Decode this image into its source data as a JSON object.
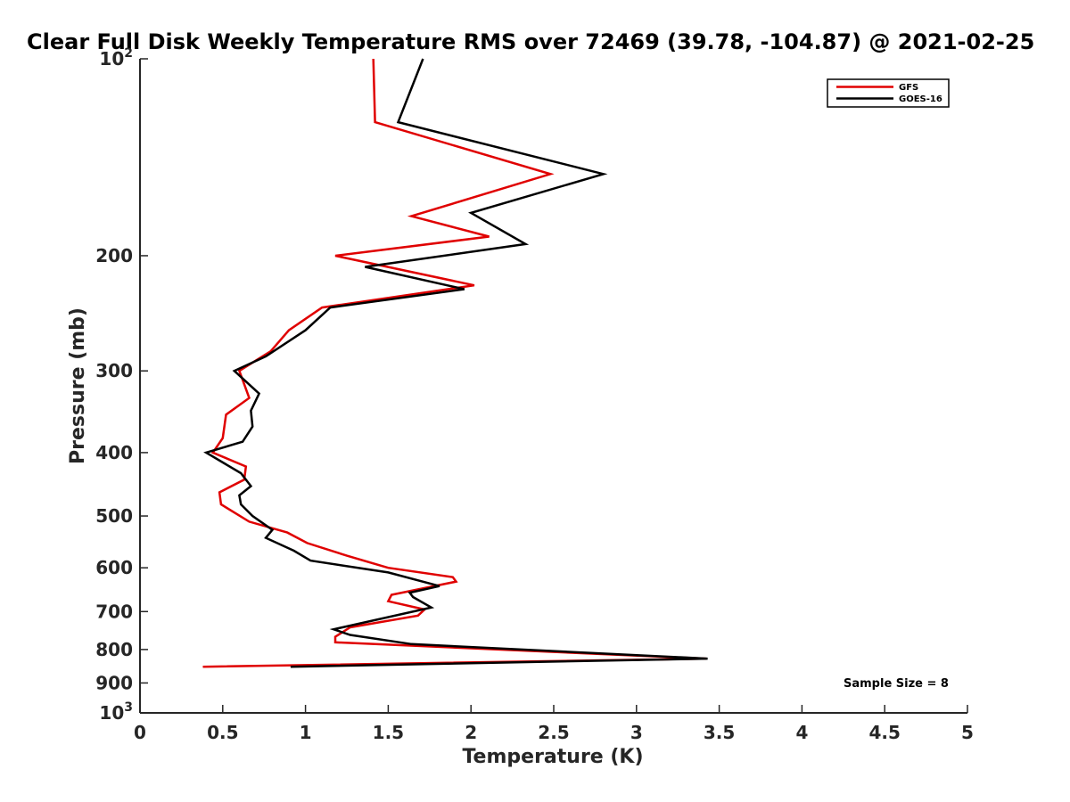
{
  "chart_data": {
    "type": "line",
    "title": "Clear Full Disk Weekly Temperature RMS over 72469 (39.78, -104.87) @ 2021-02-25",
    "xlabel": "Temperature (K)",
    "ylabel": "Pressure (mb)",
    "xlim": [
      0,
      5
    ],
    "ylim": [
      100,
      1000
    ],
    "y_scale": "log",
    "y_reversed": true,
    "x_ticks": [
      "0",
      "0.5",
      "1",
      "1.5",
      "2",
      "2.5",
      "3",
      "3.5",
      "4",
      "4.5",
      "5"
    ],
    "y_ticks": [
      {
        "value": 100,
        "base": "10",
        "exp": "2"
      },
      {
        "value": 200,
        "label": "200"
      },
      {
        "value": 300,
        "label": "300"
      },
      {
        "value": 400,
        "label": "400"
      },
      {
        "value": 500,
        "label": "500"
      },
      {
        "value": 600,
        "label": "600"
      },
      {
        "value": 700,
        "label": "700"
      },
      {
        "value": 800,
        "label": "800"
      },
      {
        "value": 900,
        "label": "900"
      },
      {
        "value": 1000,
        "base": "10",
        "exp": "3"
      }
    ],
    "grid": false,
    "legend_position": "top-right",
    "annotation": "Sample Size = 8",
    "series": [
      {
        "name": "GFS",
        "color": "#e00000",
        "points": [
          [
            1.41,
            100
          ],
          [
            1.42,
            125
          ],
          [
            2.48,
            150
          ],
          [
            1.64,
            174
          ],
          [
            2.11,
            187
          ],
          [
            1.18,
            200
          ],
          [
            2.02,
            222
          ],
          [
            1.1,
            240
          ],
          [
            0.9,
            260
          ],
          [
            0.79,
            280
          ],
          [
            0.6,
            300
          ],
          [
            0.66,
            330
          ],
          [
            0.52,
            350
          ],
          [
            0.5,
            380
          ],
          [
            0.44,
            400
          ],
          [
            0.64,
            420
          ],
          [
            0.63,
            440
          ],
          [
            0.48,
            460
          ],
          [
            0.49,
            480
          ],
          [
            0.66,
            510
          ],
          [
            0.89,
            530
          ],
          [
            1.01,
            550
          ],
          [
            1.25,
            575
          ],
          [
            1.5,
            600
          ],
          [
            1.89,
            620
          ],
          [
            1.91,
            630
          ],
          [
            1.52,
            660
          ],
          [
            1.5,
            675
          ],
          [
            1.72,
            695
          ],
          [
            1.68,
            710
          ],
          [
            1.27,
            740
          ],
          [
            1.18,
            765
          ],
          [
            1.18,
            780
          ],
          [
            3.42,
            826
          ],
          [
            0.38,
            850
          ]
        ]
      },
      {
        "name": "GOES-16",
        "color": "#000000",
        "points": [
          [
            1.71,
            100
          ],
          [
            1.56,
            125
          ],
          [
            2.8,
            150
          ],
          [
            2.0,
            172
          ],
          [
            2.33,
            192
          ],
          [
            1.36,
            208
          ],
          [
            1.96,
            225
          ],
          [
            1.15,
            240
          ],
          [
            1.0,
            260
          ],
          [
            0.76,
            285
          ],
          [
            0.57,
            300
          ],
          [
            0.72,
            325
          ],
          [
            0.67,
            345
          ],
          [
            0.68,
            365
          ],
          [
            0.62,
            385
          ],
          [
            0.4,
            400
          ],
          [
            0.61,
            430
          ],
          [
            0.67,
            450
          ],
          [
            0.6,
            465
          ],
          [
            0.61,
            480
          ],
          [
            0.68,
            500
          ],
          [
            0.8,
            525
          ],
          [
            0.76,
            540
          ],
          [
            0.93,
            565
          ],
          [
            1.03,
            585
          ],
          [
            1.5,
            610
          ],
          [
            1.81,
            640
          ],
          [
            1.63,
            655
          ],
          [
            1.65,
            665
          ],
          [
            1.76,
            690
          ],
          [
            1.17,
            745
          ],
          [
            1.27,
            760
          ],
          [
            1.64,
            785
          ],
          [
            3.43,
            826
          ],
          [
            0.91,
            850
          ]
        ]
      }
    ]
  }
}
